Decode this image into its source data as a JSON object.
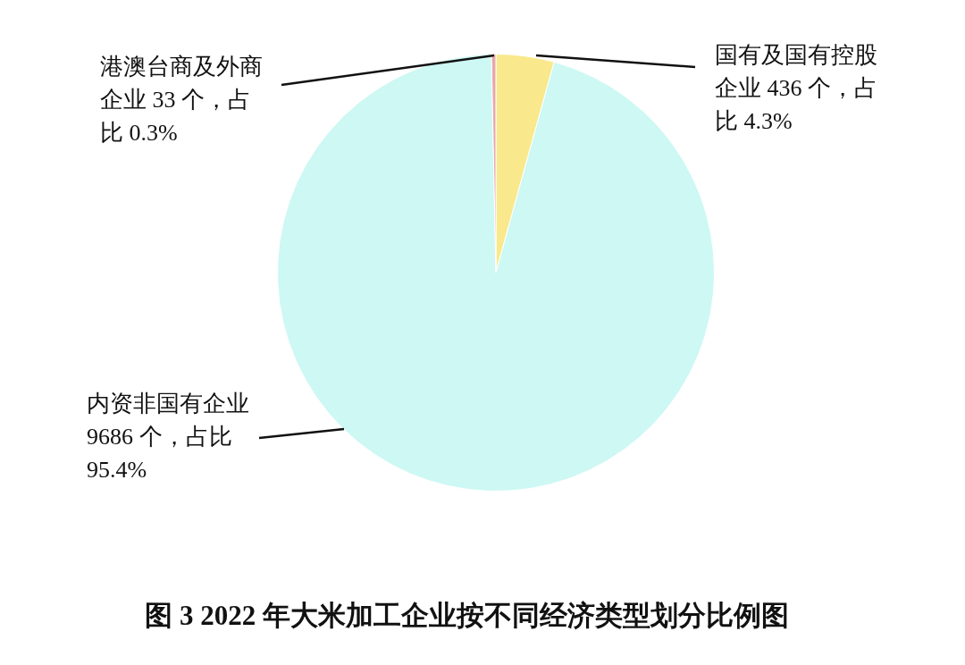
{
  "chart_data": {
    "type": "pie",
    "title": "图 3 2022 年大米加工企业按不同经济类型划分比例图",
    "categories": [
      "国有及国有控股企业",
      "内资非国有企业",
      "港澳台商及外商企业"
    ],
    "values": [
      436,
      9686,
      33
    ],
    "value_labels": [
      "436 个，占比 4.3%",
      "9686 个，占比 95.4%",
      "33 个，占比 0.3%"
    ],
    "colors": [
      "#f9e98c",
      "#cdf8f4",
      "#e8a8a8"
    ],
    "legend": false
  }
}
